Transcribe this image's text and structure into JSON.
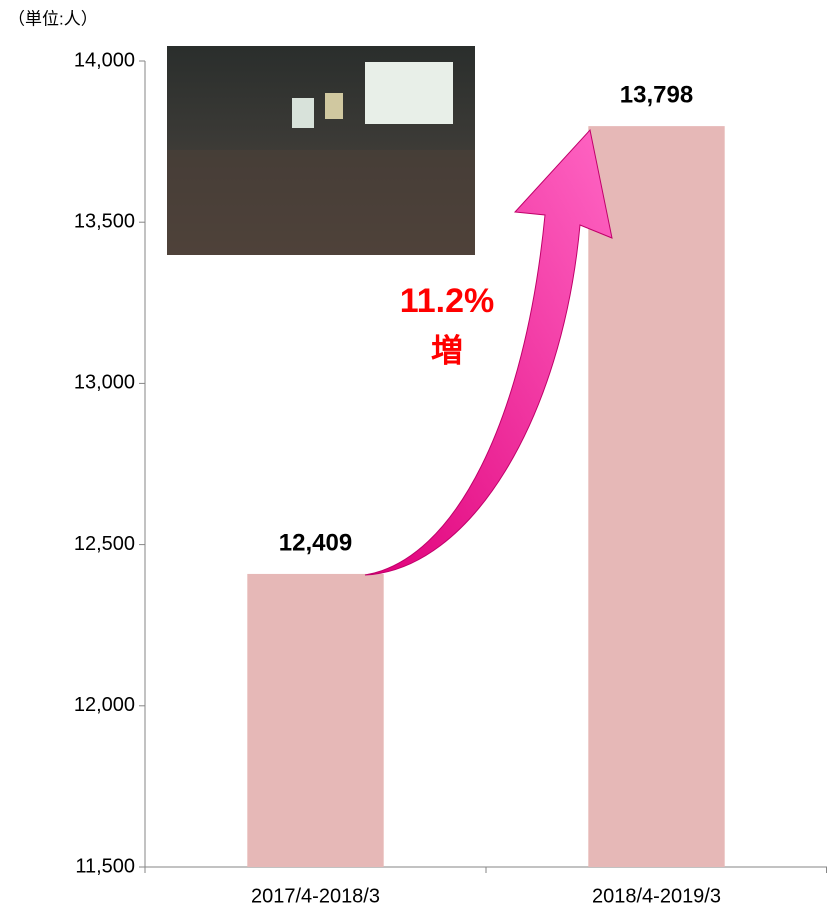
{
  "chart_data": {
    "type": "bar",
    "unit_label": "（単位:人）",
    "categories": [
      "2017/4-2018/3",
      "2018/4-2019/3"
    ],
    "values": [
      12409,
      13798
    ],
    "value_labels": [
      "12,409",
      "13,798"
    ],
    "color": "#e6b8b7",
    "ylim": [
      11500,
      14000
    ],
    "yticks": [
      {
        "value": 11500,
        "label": "11,500"
      },
      {
        "value": 12000,
        "label": "12,000"
      },
      {
        "value": 12500,
        "label": "12,500"
      },
      {
        "value": 13000,
        "label": "13,000"
      },
      {
        "value": 13500,
        "label": "13,500"
      },
      {
        "value": 14000,
        "label": "14,000"
      }
    ],
    "annotations": [
      "11.2%",
      "増"
    ]
  }
}
